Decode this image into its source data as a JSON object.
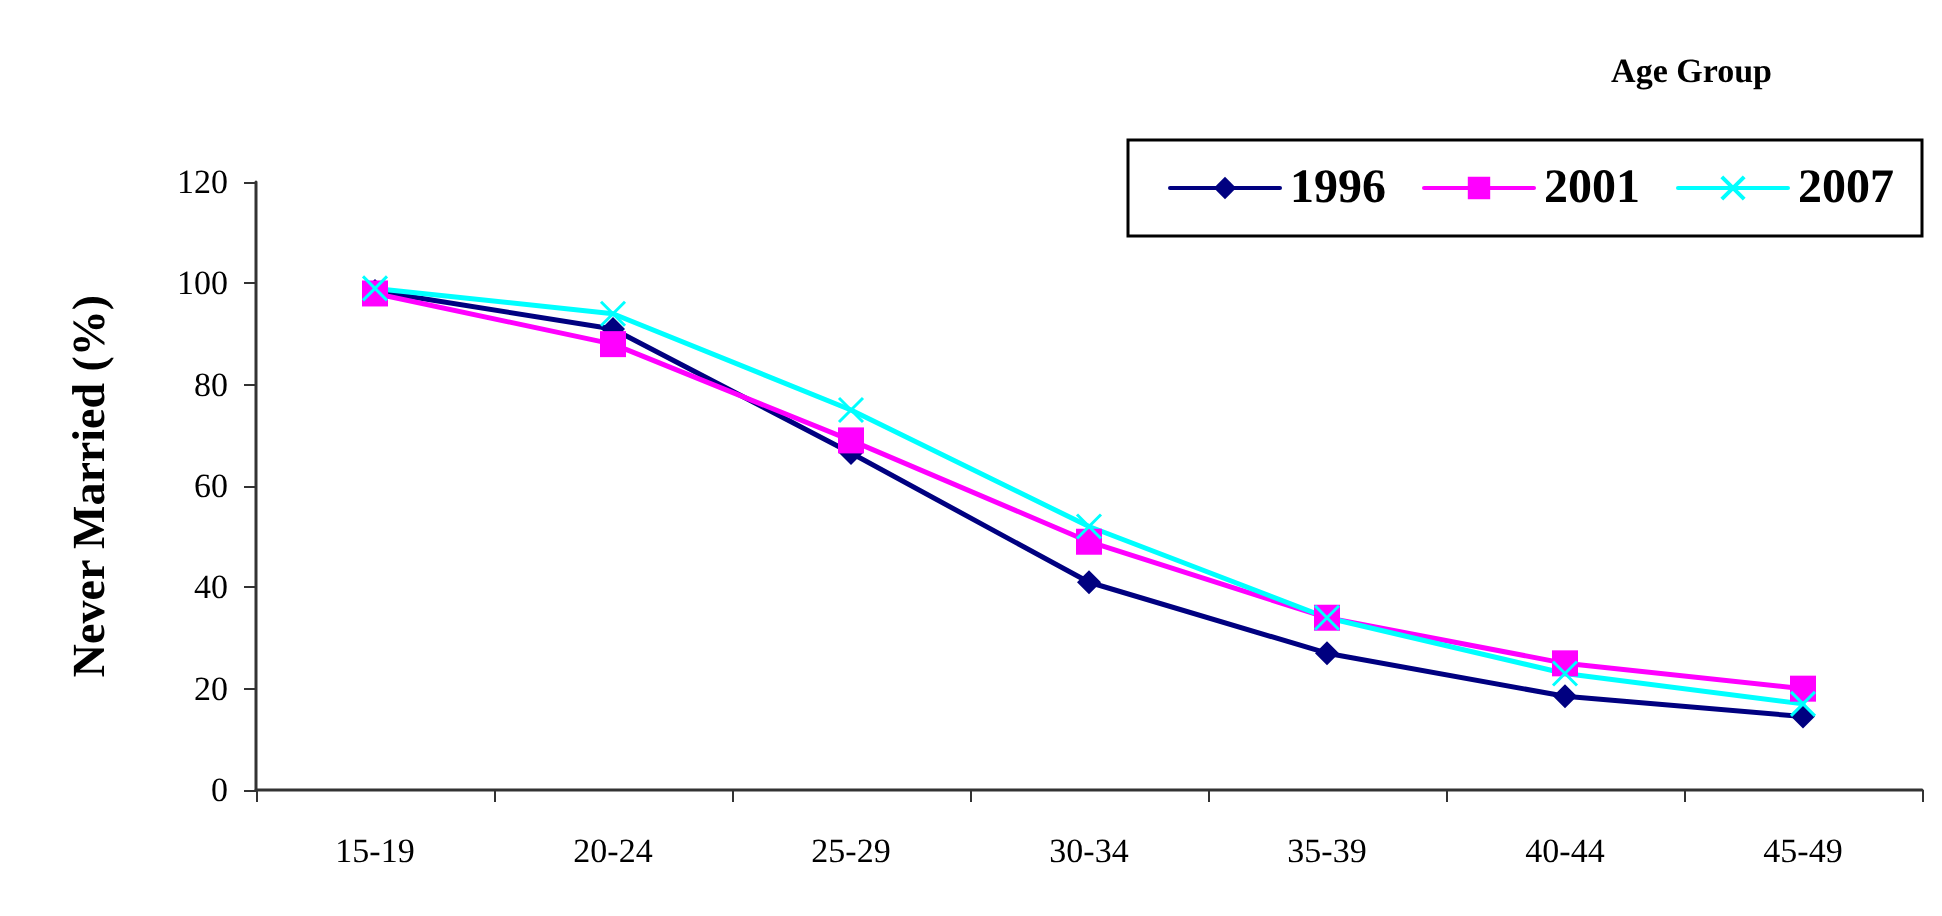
{
  "chart_data": {
    "type": "line",
    "ylabel": "Never Married (%)",
    "legend_title": "Age Group",
    "categories": [
      "15-19",
      "20-24",
      "25-29",
      "30-34",
      "35-39",
      "40-44",
      "45-49"
    ],
    "series": [
      {
        "name": "1996",
        "color": "#000080",
        "marker": "diamond",
        "values": [
          98.5,
          91,
          66.5,
          41,
          27,
          18.5,
          14.5
        ]
      },
      {
        "name": "2001",
        "color": "#ff00ff",
        "marker": "square",
        "values": [
          98,
          88,
          69,
          49,
          34,
          25,
          20
        ]
      },
      {
        "name": "2007",
        "color": "#00ffff",
        "marker": "cross",
        "values": [
          99,
          94,
          75,
          52,
          34,
          23,
          17
        ]
      }
    ],
    "ylim": [
      0,
      120
    ],
    "yticks": [
      0,
      20,
      40,
      60,
      80,
      100,
      120
    ],
    "grid": false,
    "legend": "top right",
    "line_style": "solid"
  }
}
